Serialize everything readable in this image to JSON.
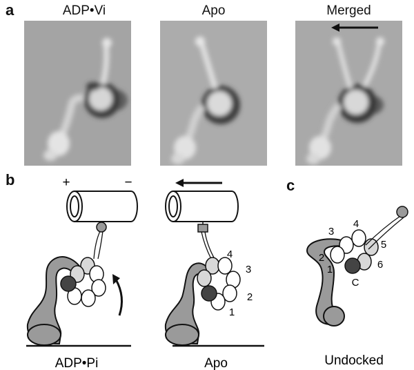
{
  "panel_a": {
    "letter": "a",
    "titles": [
      "ADP•Vi",
      "Apo",
      "Merged"
    ]
  },
  "panel_b": {
    "letter": "b",
    "plus": "+",
    "minus": "−",
    "left_label": "ADP•Pi",
    "right_label": "Apo",
    "ring_numbers": [
      "1",
      "2",
      "3",
      "4"
    ]
  },
  "panel_c": {
    "letter": "c",
    "label": "Undocked",
    "ring_numbers": [
      "1",
      "2",
      "3",
      "4",
      "5",
      "6"
    ],
    "c_label": "C"
  },
  "colors": {
    "em_background": "#a9a9a9",
    "domain_grey": "#9a9a9a",
    "dark_domain": "#444444",
    "light_domain": "#d8d8d8"
  }
}
